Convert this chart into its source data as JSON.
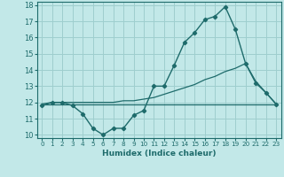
{
  "xlabel": "Humidex (Indice chaleur)",
  "bg_color": "#c2e8e8",
  "line_color": "#1e6b6b",
  "grid_color": "#9ecece",
  "xlim": [
    -0.5,
    23.5
  ],
  "ylim": [
    9.8,
    18.2
  ],
  "xticks": [
    0,
    1,
    2,
    3,
    4,
    5,
    6,
    7,
    8,
    9,
    10,
    11,
    12,
    13,
    14,
    15,
    16,
    17,
    18,
    19,
    20,
    21,
    22,
    23
  ],
  "yticks": [
    10,
    11,
    12,
    13,
    14,
    15,
    16,
    17,
    18
  ],
  "hours": [
    0,
    1,
    2,
    3,
    4,
    5,
    6,
    7,
    8,
    9,
    10,
    11,
    12,
    13,
    14,
    15,
    16,
    17,
    18,
    19,
    20,
    21,
    22,
    23
  ],
  "line1": [
    11.8,
    12.0,
    12.0,
    11.8,
    11.3,
    10.4,
    10.0,
    10.4,
    10.4,
    11.2,
    11.5,
    13.0,
    13.0,
    14.3,
    15.7,
    16.3,
    17.1,
    17.3,
    17.9,
    16.5,
    14.4,
    13.2,
    12.6,
    11.9
  ],
  "line2": [
    11.9,
    12.0,
    12.0,
    12.0,
    12.0,
    12.0,
    12.0,
    12.0,
    12.1,
    12.1,
    12.2,
    12.3,
    12.5,
    12.7,
    12.9,
    13.1,
    13.4,
    13.6,
    13.9,
    14.1,
    14.4,
    13.3,
    12.6,
    11.9
  ],
  "line3": [
    11.9,
    11.9,
    11.9,
    11.9,
    11.9,
    11.9,
    11.9,
    11.9,
    11.9,
    11.9,
    11.9,
    11.9,
    11.9,
    11.9,
    11.9,
    11.9,
    11.9,
    11.9,
    11.9,
    11.9,
    11.9,
    11.9,
    11.9,
    11.9
  ]
}
